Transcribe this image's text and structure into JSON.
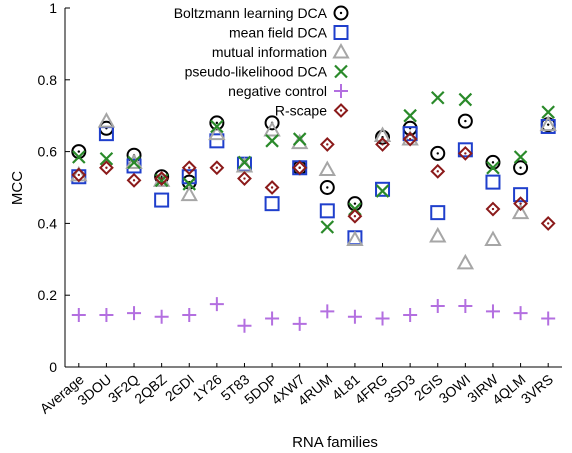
{
  "chart_data": {
    "type": "scatter",
    "xlabel": "RNA families",
    "ylabel": "MCC",
    "ylim": [
      0,
      1
    ],
    "yticks": [
      "0",
      "0.2",
      "0.4",
      "0.6",
      "0.8",
      "1"
    ],
    "grid": false,
    "legend_position": "top-right",
    "categories": [
      "Average",
      "3DOU",
      "3F2Q",
      "2QBZ",
      "2GDI",
      "1Y26",
      "5T83",
      "5DDP",
      "4XW7",
      "4RUM",
      "4L81",
      "4FRG",
      "3SD3",
      "2GIS",
      "3OWI",
      "3IRW",
      "4QLM",
      "3VRS"
    ],
    "series": [
      {
        "name": "Boltzmann learning DCA",
        "marker": "circle-dot",
        "color": "#000000",
        "values": [
          0.6,
          0.665,
          0.59,
          0.53,
          0.515,
          0.68,
          null,
          0.68,
          0.555,
          0.5,
          0.455,
          0.64,
          0.665,
          0.595,
          0.685,
          0.57,
          0.555,
          0.675
        ]
      },
      {
        "name": "mean field DCA",
        "marker": "square",
        "color": "#1f3fcc",
        "values": [
          0.53,
          0.65,
          0.56,
          0.465,
          0.53,
          0.63,
          0.565,
          0.455,
          0.555,
          0.435,
          0.36,
          0.495,
          0.65,
          0.43,
          0.605,
          0.515,
          0.48,
          0.67
        ]
      },
      {
        "name": "mutual information",
        "marker": "triangle",
        "color": "#a6a6a6",
        "values": [
          0.535,
          0.685,
          0.57,
          0.52,
          0.48,
          0.65,
          0.56,
          0.66,
          0.625,
          0.55,
          0.355,
          0.645,
          0.635,
          0.365,
          0.29,
          0.355,
          0.43,
          0.675
        ]
      },
      {
        "name": "pseudo-likelihood DCA",
        "marker": "x",
        "color": "#2a8a2a",
        "values": [
          0.585,
          0.58,
          0.57,
          0.52,
          0.51,
          0.67,
          0.57,
          0.63,
          0.635,
          0.39,
          0.44,
          0.49,
          0.7,
          0.75,
          0.745,
          0.555,
          0.585,
          0.71
        ]
      },
      {
        "name": "negative control",
        "marker": "plus",
        "color": "#b36fe0",
        "values": [
          0.145,
          0.145,
          0.15,
          0.14,
          0.145,
          0.175,
          0.115,
          0.135,
          0.12,
          0.155,
          0.14,
          0.135,
          0.145,
          0.17,
          0.17,
          0.155,
          0.15,
          0.135
        ]
      },
      {
        "name": "R-scape",
        "marker": "diamond-dot",
        "color": "#8b1a1a",
        "values": [
          0.535,
          0.555,
          0.52,
          0.525,
          0.555,
          0.555,
          0.525,
          0.5,
          0.555,
          0.62,
          0.42,
          0.62,
          0.635,
          0.545,
          0.595,
          0.44,
          0.455,
          0.4
        ]
      }
    ]
  }
}
